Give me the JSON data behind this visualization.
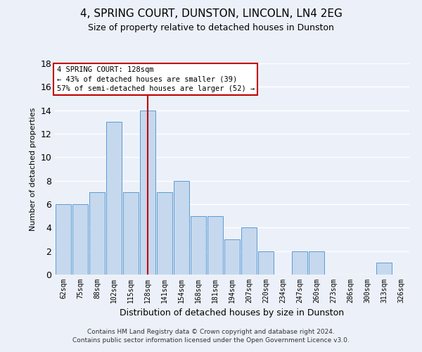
{
  "title": "4, SPRING COURT, DUNSTON, LINCOLN, LN4 2EG",
  "subtitle": "Size of property relative to detached houses in Dunston",
  "xlabel": "Distribution of detached houses by size in Dunston",
  "ylabel": "Number of detached properties",
  "categories": [
    "62sqm",
    "75sqm",
    "88sqm",
    "102sqm",
    "115sqm",
    "128sqm",
    "141sqm",
    "154sqm",
    "168sqm",
    "181sqm",
    "194sqm",
    "207sqm",
    "220sqm",
    "234sqm",
    "247sqm",
    "260sqm",
    "273sqm",
    "286sqm",
    "300sqm",
    "313sqm",
    "326sqm"
  ],
  "values": [
    6,
    6,
    7,
    13,
    7,
    14,
    7,
    8,
    5,
    5,
    3,
    4,
    2,
    0,
    2,
    2,
    0,
    0,
    0,
    1,
    0
  ],
  "bar_color": "#c5d8ed",
  "bar_edge_color": "#5b9bd5",
  "highlight_index": 5,
  "highlight_line_color": "#c00000",
  "ylim": [
    0,
    18
  ],
  "yticks": [
    0,
    2,
    4,
    6,
    8,
    10,
    12,
    14,
    16,
    18
  ],
  "annotation_box_text": "4 SPRING COURT: 128sqm\n← 43% of detached houses are smaller (39)\n57% of semi-detached houses are larger (52) →",
  "annotation_box_color": "#ffffff",
  "annotation_box_edge_color": "#c00000",
  "footer_line1": "Contains HM Land Registry data © Crown copyright and database right 2024.",
  "footer_line2": "Contains public sector information licensed under the Open Government Licence v3.0.",
  "background_color": "#ecf1f9",
  "grid_color": "#ffffff",
  "title_fontsize": 11,
  "subtitle_fontsize": 9,
  "xlabel_fontsize": 9,
  "ylabel_fontsize": 8,
  "annotation_fontsize": 7.5,
  "footer_fontsize": 6.5,
  "ytick_fontsize": 9,
  "xtick_fontsize": 7
}
